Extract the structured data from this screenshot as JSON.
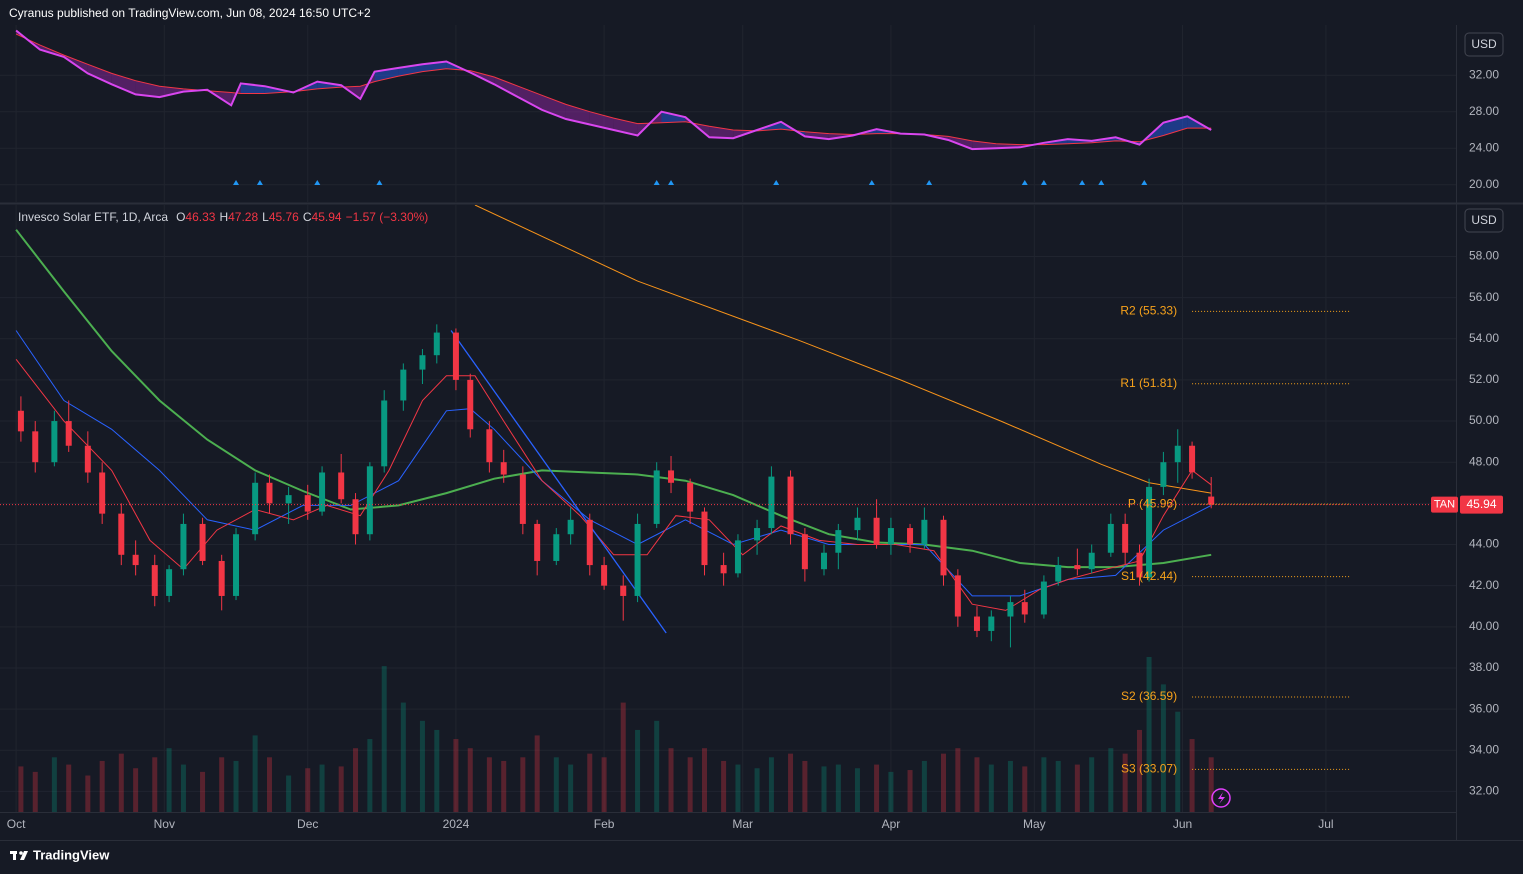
{
  "header": "Cyranus published on TradingView.com, Jun 08, 2024 16:50 UTC+2",
  "footer": "TradingView",
  "chart_data": [
    {
      "type": "indicator",
      "currency": "USD",
      "x": [
        0,
        5,
        10,
        15,
        20,
        25,
        30,
        35,
        40,
        45,
        47,
        52,
        58,
        63,
        68,
        72,
        75,
        80,
        85,
        90,
        95,
        100,
        105,
        110,
        115,
        120,
        125,
        130,
        135,
        140,
        145,
        150,
        155,
        160,
        165,
        170,
        175,
        180,
        185,
        190,
        195,
        200,
        205,
        210,
        215,
        220,
        225,
        230,
        235,
        240,
        245,
        250
      ],
      "series": [
        {
          "color": "#d946ef",
          "values": [
            36.9,
            34.8,
            34.0,
            32.2,
            31.0,
            29.9,
            29.6,
            30.2,
            30.4,
            28.7,
            31.1,
            30.8,
            30.1,
            31.3,
            30.9,
            29.4,
            32.4,
            32.8,
            33.2,
            33.5,
            32.3,
            31.0,
            29.6,
            28.2,
            27.2,
            26.6,
            26.0,
            25.4,
            28.0,
            27.4,
            25.2,
            25.1,
            26.0,
            26.9,
            25.3,
            25.0,
            25.4,
            26.1,
            25.6,
            25.5,
            24.9,
            23.9,
            24.0,
            24.1,
            24.6,
            25.0,
            24.8,
            25.2,
            24.4,
            26.8,
            27.5,
            26.0
          ]
        },
        {
          "color": "#f23645",
          "values": [
            36.5,
            35.3,
            34.2,
            33.2,
            32.2,
            31.4,
            30.8,
            30.5,
            30.3,
            30.1,
            30.0,
            30.0,
            30.2,
            30.5,
            30.7,
            30.8,
            31.3,
            31.9,
            32.4,
            32.7,
            32.5,
            31.8,
            30.8,
            29.8,
            28.8,
            28.0,
            27.3,
            26.7,
            26.8,
            26.9,
            26.4,
            26.0,
            25.9,
            26.1,
            25.8,
            25.6,
            25.5,
            25.6,
            25.6,
            25.5,
            25.3,
            24.8,
            24.5,
            24.4,
            24.4,
            24.5,
            24.6,
            24.8,
            24.7,
            25.4,
            26.2,
            26.2
          ]
        }
      ],
      "fill_above": "#2962ff",
      "fill_below": "#9c27b0",
      "markers_x": [
        46,
        51,
        63,
        76,
        134,
        137,
        159,
        179,
        191,
        211,
        215,
        223,
        227,
        236
      ],
      "marker_color": "#2196f3",
      "ylim": [
        18,
        37.5
      ],
      "yticks": [
        {
          "value": 20,
          "label": "20.00"
        },
        {
          "value": 24,
          "label": "24.00"
        },
        {
          "value": 28,
          "label": "28.00"
        },
        {
          "value": 32,
          "label": "32.00"
        }
      ],
      "grid": true
    },
    {
      "type": "candlestick",
      "title": "Invesco Solar ETF, 1D, Arca",
      "ohlc_legend": [
        {
          "key": "O",
          "value": 46.33
        },
        {
          "key": "H",
          "value": 47.28
        },
        {
          "key": "L",
          "value": 45.76
        },
        {
          "key": "C",
          "value": 45.94
        }
      ],
      "change": "−1.57 (−3.30%)",
      "currency": "USD",
      "symbol": "TAN",
      "last": 45.94,
      "x": [
        1,
        4,
        8,
        11,
        15,
        18,
        22,
        25,
        29,
        32,
        35,
        39,
        43,
        46,
        50,
        53,
        57,
        61,
        64,
        68,
        71,
        74,
        77,
        81,
        85,
        88,
        92,
        95,
        99,
        102,
        106,
        109,
        113,
        116,
        120,
        123,
        127,
        130,
        134,
        137,
        141,
        144,
        148,
        151,
        155,
        158,
        162,
        165,
        169,
        172,
        176,
        180,
        183,
        187,
        190,
        194,
        197,
        201,
        204,
        208,
        211,
        215,
        218,
        222,
        225,
        229,
        232,
        235,
        237,
        240,
        243,
        246,
        250
      ],
      "open": [
        50.5,
        49.5,
        48.0,
        50.0,
        48.8,
        47.5,
        45.5,
        43.5,
        43.0,
        41.5,
        42.8,
        45.0,
        43.2,
        41.5,
        44.5,
        47.0,
        46.0,
        46.4,
        45.6,
        47.5,
        46.2,
        44.5,
        47.8,
        51.0,
        52.5,
        53.2,
        54.3,
        52.0,
        49.6,
        48.0,
        47.4,
        45.0,
        43.2,
        44.5,
        45.2,
        43.0,
        42.0,
        41.5,
        45.0,
        47.6,
        47.0,
        45.6,
        43.0,
        42.6,
        44.2,
        44.8,
        47.3,
        44.5,
        42.8,
        43.6,
        44.7,
        45.3,
        44.0,
        44.8,
        44.0,
        45.2,
        42.5,
        40.5,
        39.8,
        40.5,
        41.2,
        40.6,
        42.2,
        43.0,
        42.8,
        43.6,
        45.0,
        43.6,
        42.4,
        46.8,
        48.0,
        48.8,
        46.33
      ],
      "high": [
        51.2,
        50.0,
        50.5,
        51.0,
        49.5,
        48.0,
        46.0,
        44.2,
        43.5,
        43.0,
        45.5,
        45.3,
        43.5,
        44.8,
        47.5,
        47.4,
        46.8,
        46.9,
        47.8,
        48.4,
        46.5,
        48.0,
        51.5,
        52.8,
        53.5,
        54.7,
        54.5,
        52.3,
        50.0,
        48.6,
        47.8,
        45.2,
        44.8,
        45.8,
        45.5,
        43.4,
        42.5,
        45.5,
        48.0,
        48.3,
        47.2,
        45.8,
        43.6,
        44.5,
        45.2,
        47.8,
        47.6,
        44.8,
        44.0,
        45.0,
        45.8,
        46.2,
        45.3,
        45.0,
        45.8,
        45.4,
        42.8,
        41.0,
        40.8,
        41.5,
        41.8,
        42.5,
        43.4,
        43.8,
        44.0,
        45.5,
        45.5,
        44.0,
        47.2,
        48.5,
        49.6,
        49.0,
        47.28
      ],
      "low": [
        49.0,
        47.5,
        47.8,
        48.5,
        47.0,
        45.0,
        43.0,
        42.5,
        41.0,
        41.2,
        42.5,
        43.0,
        40.8,
        41.3,
        44.2,
        45.5,
        45.0,
        45.2,
        45.4,
        46.0,
        44.0,
        44.2,
        47.5,
        50.5,
        51.8,
        52.8,
        51.5,
        49.2,
        47.5,
        47.0,
        44.5,
        42.5,
        43.0,
        44.0,
        42.5,
        41.8,
        40.3,
        41.2,
        44.8,
        46.5,
        45.0,
        42.5,
        42.0,
        42.4,
        43.5,
        44.5,
        44.0,
        42.2,
        42.5,
        42.8,
        44.2,
        43.8,
        43.5,
        43.6,
        43.8,
        42.0,
        40.0,
        39.5,
        39.3,
        39.0,
        40.2,
        40.4,
        42.0,
        42.5,
        42.6,
        43.4,
        43.0,
        42.0,
        42.2,
        46.4,
        47.0,
        47.2,
        45.76
      ],
      "close": [
        49.5,
        48.0,
        50.0,
        48.8,
        47.5,
        45.5,
        43.5,
        43.0,
        41.5,
        42.8,
        45.0,
        43.2,
        41.5,
        44.5,
        47.0,
        46.0,
        46.4,
        45.6,
        47.5,
        46.2,
        44.5,
        47.8,
        51.0,
        52.5,
        53.2,
        54.3,
        52.0,
        49.6,
        48.0,
        47.4,
        45.0,
        43.2,
        44.5,
        45.2,
        43.0,
        42.0,
        41.5,
        45.0,
        47.6,
        47.0,
        45.6,
        43.0,
        42.6,
        44.2,
        44.8,
        47.3,
        44.5,
        42.8,
        43.6,
        44.7,
        45.3,
        44.0,
        44.8,
        44.0,
        45.2,
        42.5,
        40.5,
        39.8,
        40.5,
        41.2,
        40.6,
        42.2,
        43.0,
        42.8,
        43.6,
        45.0,
        43.6,
        42.4,
        46.8,
        48.0,
        48.8,
        47.51,
        45.94
      ],
      "volume": [
        250,
        220,
        300,
        260,
        200,
        280,
        320,
        240,
        300,
        350,
        260,
        220,
        300,
        280,
        420,
        300,
        200,
        240,
        260,
        250,
        350,
        400,
        800,
        600,
        500,
        450,
        400,
        350,
        300,
        280,
        300,
        420,
        300,
        260,
        320,
        300,
        600,
        450,
        500,
        350,
        300,
        350,
        280,
        260,
        240,
        300,
        320,
        280,
        250,
        260,
        240,
        260,
        220,
        230,
        280,
        320,
        350,
        300,
        260,
        280,
        250,
        300,
        280,
        260,
        300,
        350,
        320,
        450,
        850,
        700,
        550,
        400,
        300
      ],
      "up_color": "#089981",
      "down_color": "#f23645",
      "moving_averages": [
        {
          "color": "#f7931a",
          "x": [
            96,
            130,
            164,
            185,
            206,
            227,
            237,
            250
          ],
          "values": [
            60.5,
            56.8,
            53.9,
            52.0,
            50.0,
            47.9,
            47.0,
            46.5
          ]
        },
        {
          "color": "#4caf50",
          "x": [
            0,
            10,
            20,
            30,
            40,
            50,
            60,
            70,
            80,
            90,
            100,
            110,
            120,
            130,
            140,
            150,
            160,
            170,
            180,
            190,
            200,
            210,
            220,
            230,
            240,
            250
          ],
          "values": [
            59.3,
            56.3,
            53.4,
            51.0,
            49.1,
            47.6,
            46.6,
            45.7,
            45.9,
            46.5,
            47.2,
            47.6,
            47.5,
            47.4,
            47.1,
            46.4,
            45.4,
            44.5,
            44.1,
            44.0,
            43.7,
            43.1,
            42.9,
            42.9,
            43.1,
            43.5
          ]
        },
        {
          "color": "#2962ff",
          "x": [
            0,
            10,
            20,
            30,
            40,
            50,
            60,
            70,
            80,
            90,
            95,
            100,
            110,
            120,
            130,
            140,
            150,
            160,
            170,
            180,
            190,
            200,
            210,
            220,
            230,
            240,
            250
          ],
          "values": [
            54.4,
            51.0,
            49.6,
            47.6,
            45.2,
            44.7,
            45.9,
            45.9,
            47.1,
            50.5,
            50.6,
            49.6,
            47.1,
            45.2,
            44.0,
            45.2,
            44.0,
            44.7,
            44.0,
            44.0,
            44.0,
            41.5,
            41.5,
            42.3,
            42.5,
            44.7,
            45.9
          ]
        },
        {
          "color": "#f23645",
          "x": [
            0,
            10,
            20,
            28,
            35,
            42,
            50,
            58,
            65,
            72,
            78,
            85,
            90,
            96,
            102,
            110,
            118,
            125,
            132,
            138,
            145,
            152,
            160,
            168,
            176,
            184,
            192,
            200,
            207,
            214,
            220,
            228,
            235,
            240,
            246,
            250
          ],
          "values": [
            53.0,
            50.0,
            47.6,
            44.2,
            42.8,
            44.7,
            45.7,
            45.2,
            45.9,
            45.4,
            47.6,
            51.0,
            52.2,
            52.2,
            50.0,
            47.1,
            45.4,
            43.5,
            43.5,
            45.4,
            45.2,
            43.5,
            44.9,
            44.2,
            44.0,
            44.0,
            43.7,
            41.1,
            40.8,
            41.8,
            42.3,
            42.8,
            43.2,
            45.4,
            47.6,
            46.9
          ]
        }
      ],
      "trend_line": {
        "color": "#2962ff",
        "x": [
          91,
          136
        ],
        "values": [
          54.4,
          39.7
        ]
      },
      "pivots": [
        {
          "label": "R2 (55.33)",
          "value": 55.33
        },
        {
          "label": "R1 (51.81)",
          "value": 51.81
        },
        {
          "label": "P (45.96)",
          "value": 45.96
        },
        {
          "label": "S1 (42.44)",
          "value": 42.44
        },
        {
          "label": "S2 (36.59)",
          "value": 36.59
        },
        {
          "label": "S3 (33.07)",
          "value": 33.07
        }
      ],
      "pivot_x": [
        246,
        279
      ],
      "pivot_color": "#f7a21b",
      "xlim": [
        -1.7,
        301
      ],
      "xticks": [
        {
          "value": 0,
          "label": "Oct"
        },
        {
          "value": 31,
          "label": "Nov"
        },
        {
          "value": 61,
          "label": "Dec"
        },
        {
          "value": 92,
          "label": "2024"
        },
        {
          "value": 123,
          "label": "Feb"
        },
        {
          "value": 152,
          "label": "Mar"
        },
        {
          "value": 183,
          "label": "Apr"
        },
        {
          "value": 213,
          "label": "May"
        },
        {
          "value": 244,
          "label": "Jun"
        },
        {
          "value": 274,
          "label": "Jul"
        }
      ],
      "ylim": [
        31,
        60.5
      ],
      "yticks": [
        {
          "value": 32,
          "label": "32.00"
        },
        {
          "value": 34,
          "label": "34.00"
        },
        {
          "value": 36,
          "label": "36.00"
        },
        {
          "value": 38,
          "label": "38.00"
        },
        {
          "value": 40,
          "label": "40.00"
        },
        {
          "value": 42,
          "label": "42.00"
        },
        {
          "value": 44,
          "label": "44.00"
        },
        {
          "value": 46,
          "label": "46.00"
        },
        {
          "value": 48,
          "label": "48.00"
        },
        {
          "value": 50,
          "label": "50.00"
        },
        {
          "value": 52,
          "label": "52.00"
        },
        {
          "value": 54,
          "label": "54.00"
        },
        {
          "value": 56,
          "label": "56.00"
        },
        {
          "value": 58,
          "label": "58.00"
        }
      ],
      "grid": true
    }
  ]
}
